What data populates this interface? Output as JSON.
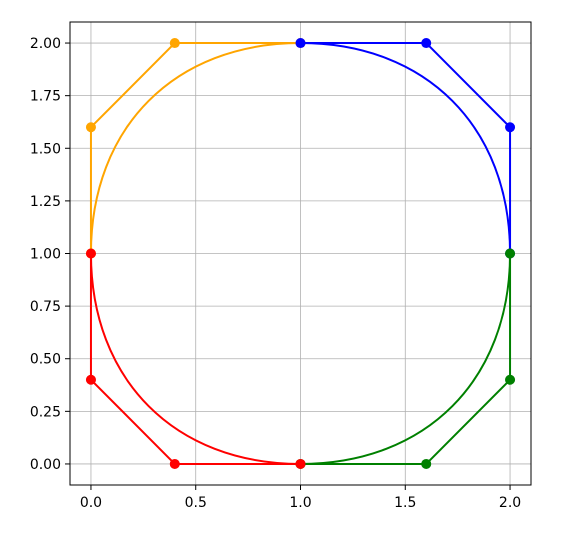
{
  "chart_data": {
    "type": "line",
    "title": "",
    "xlabel": "",
    "ylabel": "",
    "xlim": [
      -0.1,
      2.1
    ],
    "ylim": [
      -0.1,
      2.1
    ],
    "grid": true,
    "x_ticks": [
      "0.0",
      "0.5",
      "1.0",
      "1.5",
      "2.0"
    ],
    "y_ticks": [
      "0.00",
      "0.25",
      "0.50",
      "0.75",
      "1.00",
      "1.25",
      "1.50",
      "1.75",
      "2.00"
    ],
    "series": [
      {
        "color": "#ffa500",
        "control_points": [
          [
            0,
            1
          ],
          [
            0,
            1.6
          ],
          [
            0.4,
            2
          ],
          [
            1,
            2
          ]
        ]
      },
      {
        "color": "#0000ff",
        "control_points": [
          [
            1,
            2
          ],
          [
            1.6,
            2
          ],
          [
            2,
            1.6
          ],
          [
            2,
            1
          ]
        ]
      },
      {
        "color": "#008000",
        "control_points": [
          [
            2,
            1
          ],
          [
            2,
            0.4
          ],
          [
            1.6,
            0
          ],
          [
            1,
            0
          ]
        ]
      },
      {
        "color": "#ff0000",
        "control_points": [
          [
            1,
            0
          ],
          [
            0.4,
            0
          ],
          [
            0,
            0.4
          ],
          [
            0,
            1
          ]
        ]
      }
    ]
  }
}
